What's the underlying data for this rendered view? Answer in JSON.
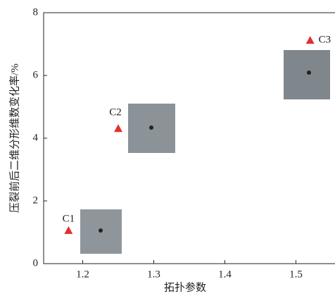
{
  "chart_data": {
    "type": "scatter",
    "xlabel": "拓扑参数",
    "ylabel": "压裂前后二维分形维数变化率/%",
    "x": [
      1.18,
      1.25,
      1.52
    ],
    "values": [
      1.06,
      4.31,
      7.12
    ],
    "labels": [
      "C1",
      "C2",
      "C3"
    ],
    "color": "#e03030",
    "xlim": [
      1.145,
      1.555
    ],
    "ylim": [
      0,
      8
    ],
    "xticks": [
      1.2,
      1.3,
      1.4,
      1.5
    ],
    "yticks": [
      0,
      2,
      4,
      6,
      8
    ]
  }
}
